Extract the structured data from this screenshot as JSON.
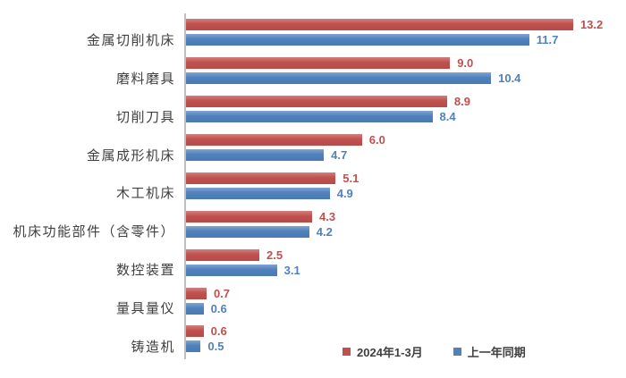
{
  "chart_data": {
    "type": "bar",
    "orientation": "horizontal",
    "title": "",
    "xlabel": "",
    "ylabel": "",
    "categories": [
      "金属切削机床",
      "磨料磨具",
      "切削刀具",
      "金属成形机床",
      "木工机床",
      "机床功能部件（含零件）",
      "数控装置",
      "量具量仪",
      "铸造机"
    ],
    "series": [
      {
        "name": "2024年1-3月",
        "color": "#c0504d",
        "values": [
          13.2,
          9.0,
          8.9,
          6.0,
          5.1,
          4.3,
          2.5,
          0.7,
          0.6
        ],
        "labels": [
          "13.2",
          "9.0",
          "8.9",
          "6.0",
          "5.1",
          "4.3",
          "2.5",
          "0.7",
          "0.6"
        ]
      },
      {
        "name": "上一年同期",
        "color": "#4f81bd",
        "values": [
          11.7,
          10.4,
          8.4,
          4.7,
          4.9,
          4.2,
          3.1,
          0.6,
          0.5
        ],
        "labels": [
          "11.7",
          "10.4",
          "8.4",
          "4.7",
          "4.9",
          "4.2",
          "3.1",
          "0.6",
          "0.5"
        ]
      }
    ],
    "xlim": [
      0,
      14
    ],
    "grid": false,
    "legend_position": "bottom-center",
    "value_labels": true
  },
  "colors": {
    "axis_line": "#bfbfbf",
    "category_text": "#404040",
    "legend_text": "#404040",
    "background": "#ffffff"
  }
}
